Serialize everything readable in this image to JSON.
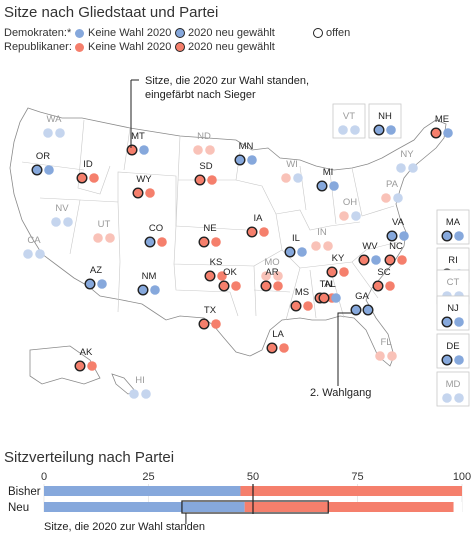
{
  "map": {
    "title": "Sitze nach Gliedstaat und Partei",
    "legend": {
      "dem_label": "Demokraten:*",
      "rep_label": "Republikaner:",
      "no_election": "Keine Wahl 2020",
      "newly_elected": "2020 neu gewählt",
      "open": "offen"
    },
    "annotations": {
      "seats_up": "Sitze, die 2020 zur Wahl standen,\neingefärbt nach Sieger",
      "runoff": "2. Wahlgang"
    },
    "colors": {
      "dem": "#86a8dc",
      "rep": "#f57f6c",
      "dem_faint": "#c5d5ee",
      "rep_faint": "#f9c2b8",
      "outline": "#222222"
    },
    "states": [
      {
        "abbr": "WA",
        "seats": [
          "d",
          "d"
        ],
        "faded": true
      },
      {
        "abbr": "OR",
        "seats": [
          "D",
          "d"
        ],
        "faded": false
      },
      {
        "abbr": "ID",
        "seats": [
          "R",
          "r"
        ],
        "faded": false
      },
      {
        "abbr": "MT",
        "seats": [
          "R",
          "d"
        ],
        "faded": false
      },
      {
        "abbr": "ND",
        "seats": [
          "r",
          "r"
        ],
        "faded": true
      },
      {
        "abbr": "MN",
        "seats": [
          "D",
          "d"
        ],
        "faded": false
      },
      {
        "abbr": "WI",
        "seats": [
          "r",
          "d"
        ],
        "faded": true
      },
      {
        "abbr": "MI",
        "seats": [
          "D",
          "d"
        ],
        "faded": false
      },
      {
        "abbr": "NY",
        "seats": [
          "d",
          "d"
        ],
        "faded": true
      },
      {
        "abbr": "VT",
        "seats": [
          "d",
          "d"
        ],
        "faded": true
      },
      {
        "abbr": "NH",
        "seats": [
          "D",
          "d"
        ],
        "faded": false
      },
      {
        "abbr": "ME",
        "seats": [
          "R",
          "d"
        ],
        "faded": false
      },
      {
        "abbr": "WY",
        "seats": [
          "R",
          "r"
        ],
        "faded": false
      },
      {
        "abbr": "SD",
        "seats": [
          "R",
          "r"
        ],
        "faded": false
      },
      {
        "abbr": "NV",
        "seats": [
          "d",
          "d"
        ],
        "faded": true
      },
      {
        "abbr": "UT",
        "seats": [
          "r",
          "r"
        ],
        "faded": true
      },
      {
        "abbr": "CO",
        "seats": [
          "D",
          "r"
        ],
        "faded": false
      },
      {
        "abbr": "NE",
        "seats": [
          "R",
          "r"
        ],
        "faded": false
      },
      {
        "abbr": "IA",
        "seats": [
          "R",
          "r"
        ],
        "faded": false
      },
      {
        "abbr": "IL",
        "seats": [
          "D",
          "d"
        ],
        "faded": false
      },
      {
        "abbr": "IN",
        "seats": [
          "r",
          "r"
        ],
        "faded": true
      },
      {
        "abbr": "OH",
        "seats": [
          "r",
          "d"
        ],
        "faded": true
      },
      {
        "abbr": "PA",
        "seats": [
          "r",
          "d"
        ],
        "faded": true
      },
      {
        "abbr": "CA",
        "seats": [
          "d",
          "d"
        ],
        "faded": true
      },
      {
        "abbr": "KS",
        "seats": [
          "R",
          "r"
        ],
        "faded": false
      },
      {
        "abbr": "MO",
        "seats": [
          "r",
          "r"
        ],
        "faded": true
      },
      {
        "abbr": "KY",
        "seats": [
          "R",
          "r"
        ],
        "faded": false
      },
      {
        "abbr": "WV",
        "seats": [
          "R",
          "d"
        ],
        "faded": false
      },
      {
        "abbr": "VA",
        "seats": [
          "D",
          "d"
        ],
        "faded": false
      },
      {
        "abbr": "AZ",
        "seats": [
          "D",
          "d"
        ],
        "faded": false
      },
      {
        "abbr": "NM",
        "seats": [
          "D",
          "d"
        ],
        "faded": false
      },
      {
        "abbr": "OK",
        "seats": [
          "R",
          "r"
        ],
        "faded": false
      },
      {
        "abbr": "AR",
        "seats": [
          "R",
          "r"
        ],
        "faded": false
      },
      {
        "abbr": "TN",
        "seats": [
          "R",
          "r"
        ],
        "faded": false
      },
      {
        "abbr": "NC",
        "seats": [
          "R",
          "r"
        ],
        "faded": false
      },
      {
        "abbr": "SC",
        "seats": [
          "R",
          "r"
        ],
        "faded": false
      },
      {
        "abbr": "MS",
        "seats": [
          "R",
          "r"
        ],
        "faded": false
      },
      {
        "abbr": "AL",
        "seats": [
          "R",
          "d"
        ],
        "faded": false
      },
      {
        "abbr": "GA",
        "seats": [
          "O",
          "O"
        ],
        "faded": false
      },
      {
        "abbr": "TX",
        "seats": [
          "R",
          "r"
        ],
        "faded": false
      },
      {
        "abbr": "LA",
        "seats": [
          "R",
          "r"
        ],
        "faded": false
      },
      {
        "abbr": "FL",
        "seats": [
          "r",
          "r"
        ],
        "faded": true
      },
      {
        "abbr": "AK",
        "seats": [
          "R",
          "r"
        ],
        "faded": false
      },
      {
        "abbr": "HI",
        "seats": [
          "d",
          "d"
        ],
        "faded": true
      },
      {
        "abbr": "MA",
        "seats": [
          "D",
          "d"
        ],
        "faded": false
      },
      {
        "abbr": "RI",
        "seats": [
          "D",
          "d"
        ],
        "faded": false
      },
      {
        "abbr": "CT",
        "seats": [
          "d",
          "d"
        ],
        "faded": true
      },
      {
        "abbr": "NJ",
        "seats": [
          "D",
          "d"
        ],
        "faded": false
      },
      {
        "abbr": "DE",
        "seats": [
          "D",
          "d"
        ],
        "faded": false
      },
      {
        "abbr": "MD",
        "seats": [
          "d",
          "d"
        ],
        "faded": true
      }
    ]
  },
  "chart_data": {
    "type": "bar",
    "title": "Sitzverteilung nach Partei",
    "xlim": [
      0,
      100
    ],
    "ticks": [
      "0",
      "25",
      "50",
      "75",
      "100"
    ],
    "tick_values": [
      0,
      25,
      50,
      75,
      100
    ],
    "categories": [
      "Bisher",
      "Neu"
    ],
    "series": [
      {
        "values": [
          47,
          48
        ]
      },
      {
        "values": [
          53,
          50
        ]
      }
    ],
    "colors": [
      "#86a8dc",
      "#f57f6c"
    ],
    "open_seats_new": 2,
    "box_new": [
      33,
      68
    ],
    "reference_line": 50,
    "annotation": "Sitze, die 2020 zur Wahl standen"
  }
}
